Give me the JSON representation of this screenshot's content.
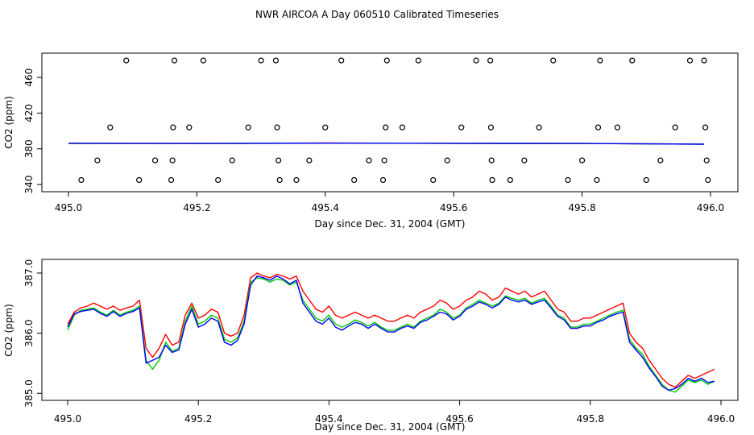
{
  "title": "NWR AIRCOA A  Day 060510  Calibrated Timeseries",
  "colors": {
    "frame": "#000000",
    "red": "#ff0000",
    "green": "#00cc00",
    "blue": "#0000ff"
  },
  "chart_data": [
    {
      "type": "scatter",
      "name": "top-panel",
      "xlabel": "Day since Dec. 31, 2004 (GMT)",
      "ylabel": "CO2 (ppm)",
      "xlim": [
        495.0,
        496.0
      ],
      "ylim": [
        340,
        480
      ],
      "xticks": [
        495.0,
        495.2,
        495.4,
        495.6,
        495.8,
        496.0
      ],
      "xtick_labels": [
        "495.0",
        "495.2",
        "495.4",
        "495.6",
        "495.8",
        "496.0"
      ],
      "yticks": [
        340,
        380,
        420,
        460
      ],
      "ytick_labels": [
        "340",
        "380",
        "420",
        "460"
      ],
      "points": [
        [
          495.02,
          345
        ],
        [
          495.045,
          367
        ],
        [
          495.065,
          404
        ],
        [
          495.09,
          479
        ],
        [
          495.11,
          345
        ],
        [
          495.135,
          367
        ],
        [
          495.16,
          345
        ],
        [
          495.162,
          367
        ],
        [
          495.163,
          404
        ],
        [
          495.165,
          479
        ],
        [
          495.188,
          404
        ],
        [
          495.21,
          479
        ],
        [
          495.233,
          345
        ],
        [
          495.255,
          367
        ],
        [
          495.28,
          404
        ],
        [
          495.3,
          479
        ],
        [
          495.323,
          479
        ],
        [
          495.325,
          404
        ],
        [
          495.327,
          367
        ],
        [
          495.329,
          345
        ],
        [
          495.355,
          345
        ],
        [
          495.375,
          367
        ],
        [
          495.4,
          404
        ],
        [
          495.425,
          479
        ],
        [
          495.445,
          345
        ],
        [
          495.468,
          367
        ],
        [
          495.49,
          345
        ],
        [
          495.492,
          367
        ],
        [
          495.494,
          404
        ],
        [
          495.496,
          479
        ],
        [
          495.52,
          404
        ],
        [
          495.545,
          479
        ],
        [
          495.568,
          345
        ],
        [
          495.59,
          367
        ],
        [
          495.612,
          404
        ],
        [
          495.635,
          479
        ],
        [
          495.657,
          479
        ],
        [
          495.658,
          404
        ],
        [
          495.659,
          367
        ],
        [
          495.66,
          345
        ],
        [
          495.688,
          345
        ],
        [
          495.71,
          367
        ],
        [
          495.733,
          404
        ],
        [
          495.755,
          479
        ],
        [
          495.778,
          345
        ],
        [
          495.8,
          367
        ],
        [
          495.823,
          345
        ],
        [
          495.825,
          404
        ],
        [
          495.828,
          479
        ],
        [
          495.855,
          404
        ],
        [
          495.878,
          479
        ],
        [
          495.9,
          345
        ],
        [
          495.922,
          367
        ],
        [
          495.945,
          404
        ],
        [
          495.968,
          479
        ],
        [
          495.99,
          479
        ],
        [
          495.992,
          404
        ],
        [
          495.994,
          367
        ],
        [
          495.996,
          345
        ]
      ],
      "series": [
        {
          "name": "red",
          "x": [
            495.0,
            495.2,
            495.4,
            495.6,
            495.8,
            495.99
          ],
          "values": [
            386.3,
            386.0,
            386.5,
            386.2,
            386.0,
            385.3
          ]
        },
        {
          "name": "green",
          "x": [
            495.0,
            495.2,
            495.4,
            495.6,
            495.8,
            495.99
          ],
          "values": [
            386.1,
            386.0,
            386.3,
            386.2,
            386.0,
            385.2
          ]
        },
        {
          "name": "blue",
          "x": [
            495.0,
            495.2,
            495.4,
            495.6,
            495.8,
            495.99
          ],
          "values": [
            386.2,
            386.0,
            386.3,
            386.2,
            386.0,
            385.2
          ]
        }
      ]
    },
    {
      "type": "line",
      "name": "bottom-panel",
      "xlabel": "Day since Dec. 31, 2004 (GMT)",
      "ylabel": "CO2 (ppm)",
      "xlim": [
        495.0,
        496.0
      ],
      "ylim": [
        384.95,
        387.12
      ],
      "xticks": [
        495.0,
        495.2,
        495.4,
        495.6,
        495.8,
        496.0
      ],
      "xtick_labels": [
        "495.0",
        "495.2",
        "495.4",
        "495.6",
        "495.8",
        "496.0"
      ],
      "yticks": [
        385.0,
        386.0,
        387.0
      ],
      "ytick_labels": [
        "385.0",
        "386.0",
        "387.0"
      ],
      "series": [
        {
          "name": "red",
          "x": [
            495.0,
            495.01,
            495.02,
            495.03,
            495.04,
            495.05,
            495.06,
            495.07,
            495.08,
            495.09,
            495.1,
            495.11,
            495.12,
            495.13,
            495.14,
            495.15,
            495.16,
            495.17,
            495.18,
            495.19,
            495.2,
            495.21,
            495.22,
            495.23,
            495.24,
            495.25,
            495.26,
            495.27,
            495.28,
            495.29,
            495.3,
            495.31,
            495.32,
            495.33,
            495.34,
            495.35,
            495.36,
            495.37,
            495.38,
            495.39,
            495.4,
            495.41,
            495.42,
            495.43,
            495.44,
            495.45,
            495.46,
            495.47,
            495.48,
            495.49,
            495.5,
            495.51,
            495.52,
            495.53,
            495.54,
            495.55,
            495.56,
            495.57,
            495.58,
            495.59,
            495.6,
            495.61,
            495.62,
            495.63,
            495.64,
            495.65,
            495.66,
            495.67,
            495.68,
            495.69,
            495.7,
            495.71,
            495.72,
            495.73,
            495.74,
            495.75,
            495.76,
            495.77,
            495.78,
            495.79,
            495.8,
            495.81,
            495.82,
            495.83,
            495.84,
            495.85,
            495.86,
            495.87,
            495.88,
            495.89,
            495.9,
            495.91,
            495.92,
            495.93,
            495.94,
            495.95,
            495.96,
            495.97,
            495.98,
            495.99
          ],
          "values": [
            386.15,
            386.35,
            386.42,
            386.45,
            386.5,
            386.45,
            386.4,
            386.45,
            386.38,
            386.42,
            386.45,
            386.55,
            385.75,
            385.6,
            385.75,
            385.98,
            385.8,
            385.85,
            386.3,
            386.5,
            386.25,
            386.3,
            386.4,
            386.35,
            386.0,
            385.95,
            386.0,
            386.3,
            386.92,
            387.0,
            386.95,
            386.92,
            386.98,
            386.95,
            386.9,
            386.95,
            386.7,
            386.55,
            386.4,
            386.35,
            386.45,
            386.3,
            386.25,
            386.3,
            386.35,
            386.3,
            386.25,
            386.3,
            386.25,
            386.2,
            386.2,
            386.25,
            386.3,
            386.25,
            386.35,
            386.4,
            386.45,
            386.55,
            386.5,
            386.4,
            386.45,
            386.55,
            386.6,
            386.7,
            386.65,
            386.55,
            386.6,
            386.75,
            386.7,
            386.65,
            386.7,
            386.6,
            386.65,
            386.7,
            386.55,
            386.4,
            386.35,
            386.2,
            386.2,
            386.25,
            386.25,
            386.3,
            386.35,
            386.4,
            386.45,
            386.5,
            386.0,
            385.85,
            385.75,
            385.55,
            385.4,
            385.25,
            385.15,
            385.1,
            385.2,
            385.3,
            385.25,
            385.3,
            385.35,
            385.4
          ]
        },
        {
          "name": "green",
          "x": [
            495.0,
            495.01,
            495.02,
            495.03,
            495.04,
            495.05,
            495.06,
            495.07,
            495.08,
            495.09,
            495.1,
            495.11,
            495.12,
            495.13,
            495.14,
            495.15,
            495.16,
            495.17,
            495.18,
            495.19,
            495.2,
            495.21,
            495.22,
            495.23,
            495.24,
            495.25,
            495.26,
            495.27,
            495.28,
            495.29,
            495.3,
            495.31,
            495.32,
            495.33,
            495.34,
            495.35,
            495.36,
            495.37,
            495.38,
            495.39,
            495.4,
            495.41,
            495.42,
            495.43,
            495.44,
            495.45,
            495.46,
            495.47,
            495.48,
            495.49,
            495.5,
            495.51,
            495.52,
            495.53,
            495.54,
            495.55,
            495.56,
            495.57,
            495.58,
            495.59,
            495.6,
            495.61,
            495.62,
            495.63,
            495.64,
            495.65,
            495.66,
            495.67,
            495.68,
            495.69,
            495.7,
            495.71,
            495.72,
            495.73,
            495.74,
            495.75,
            495.76,
            495.77,
            495.78,
            495.79,
            495.8,
            495.81,
            495.82,
            495.83,
            495.84,
            495.85,
            495.86,
            495.87,
            495.88,
            495.89,
            495.9,
            495.91,
            495.92,
            495.93,
            495.94,
            495.95,
            495.96,
            495.97,
            495.98,
            495.99
          ],
          "values": [
            386.05,
            386.3,
            386.38,
            386.4,
            386.42,
            386.35,
            386.3,
            386.38,
            386.3,
            386.35,
            386.38,
            386.45,
            385.55,
            385.4,
            385.55,
            385.85,
            385.7,
            385.75,
            386.2,
            386.45,
            386.15,
            386.2,
            386.3,
            386.25,
            385.9,
            385.85,
            385.92,
            386.2,
            386.85,
            386.92,
            386.9,
            386.85,
            386.9,
            386.88,
            386.8,
            386.85,
            386.55,
            386.4,
            386.25,
            386.2,
            386.3,
            386.15,
            386.1,
            386.15,
            386.22,
            386.18,
            386.12,
            386.18,
            386.1,
            386.05,
            386.05,
            386.1,
            386.15,
            386.1,
            386.2,
            386.25,
            386.3,
            386.4,
            386.35,
            386.25,
            386.3,
            386.42,
            386.48,
            386.55,
            386.5,
            386.45,
            386.5,
            386.62,
            386.58,
            386.55,
            386.58,
            386.5,
            386.55,
            386.58,
            386.45,
            386.3,
            386.25,
            386.1,
            386.1,
            386.15,
            386.15,
            386.2,
            386.25,
            386.3,
            386.35,
            386.38,
            385.9,
            385.75,
            385.65,
            385.45,
            385.3,
            385.15,
            385.05,
            385.02,
            385.12,
            385.22,
            385.18,
            385.22,
            385.15,
            385.2
          ]
        },
        {
          "name": "blue",
          "x": [
            495.0,
            495.01,
            495.02,
            495.03,
            495.04,
            495.05,
            495.06,
            495.07,
            495.08,
            495.09,
            495.1,
            495.11,
            495.12,
            495.13,
            495.14,
            495.15,
            495.16,
            495.17,
            495.18,
            495.19,
            495.2,
            495.21,
            495.22,
            495.23,
            495.24,
            495.25,
            495.26,
            495.27,
            495.28,
            495.29,
            495.3,
            495.31,
            495.32,
            495.33,
            495.34,
            495.35,
            495.36,
            495.37,
            495.38,
            495.39,
            495.4,
            495.41,
            495.42,
            495.43,
            495.44,
            495.45,
            495.46,
            495.47,
            495.48,
            495.49,
            495.5,
            495.51,
            495.52,
            495.53,
            495.54,
            495.55,
            495.56,
            495.57,
            495.58,
            495.59,
            495.6,
            495.61,
            495.62,
            495.63,
            495.64,
            495.65,
            495.66,
            495.67,
            495.68,
            495.69,
            495.7,
            495.71,
            495.72,
            495.73,
            495.74,
            495.75,
            495.76,
            495.77,
            495.78,
            495.79,
            495.8,
            495.81,
            495.82,
            495.83,
            495.84,
            495.85,
            495.86,
            495.87,
            495.88,
            495.89,
            495.9,
            495.91,
            495.92,
            495.93,
            495.94,
            495.95,
            495.96,
            495.97,
            495.98,
            495.99
          ],
          "values": [
            386.1,
            386.32,
            386.36,
            386.38,
            386.4,
            386.33,
            386.28,
            386.36,
            386.28,
            386.33,
            386.36,
            386.42,
            385.5,
            385.55,
            385.6,
            385.8,
            385.68,
            385.72,
            386.15,
            386.4,
            386.1,
            386.15,
            386.25,
            386.2,
            385.85,
            385.8,
            385.88,
            386.15,
            386.8,
            386.95,
            386.92,
            386.88,
            386.95,
            386.9,
            386.82,
            386.88,
            386.5,
            386.35,
            386.2,
            386.15,
            386.25,
            386.1,
            386.05,
            386.12,
            386.18,
            386.15,
            386.08,
            386.15,
            386.08,
            386.02,
            386.02,
            386.08,
            386.12,
            386.08,
            386.18,
            386.22,
            386.28,
            386.35,
            386.32,
            386.22,
            386.28,
            386.4,
            386.45,
            386.52,
            386.48,
            386.42,
            386.48,
            386.6,
            386.55,
            386.52,
            386.55,
            386.48,
            386.52,
            386.55,
            386.42,
            386.28,
            386.22,
            386.08,
            386.08,
            386.12,
            386.12,
            386.18,
            386.22,
            386.28,
            386.32,
            386.35,
            385.85,
            385.72,
            385.6,
            385.42,
            385.28,
            385.12,
            385.05,
            385.08,
            385.15,
            385.25,
            385.2,
            385.25,
            385.18,
            385.2
          ]
        }
      ]
    }
  ]
}
